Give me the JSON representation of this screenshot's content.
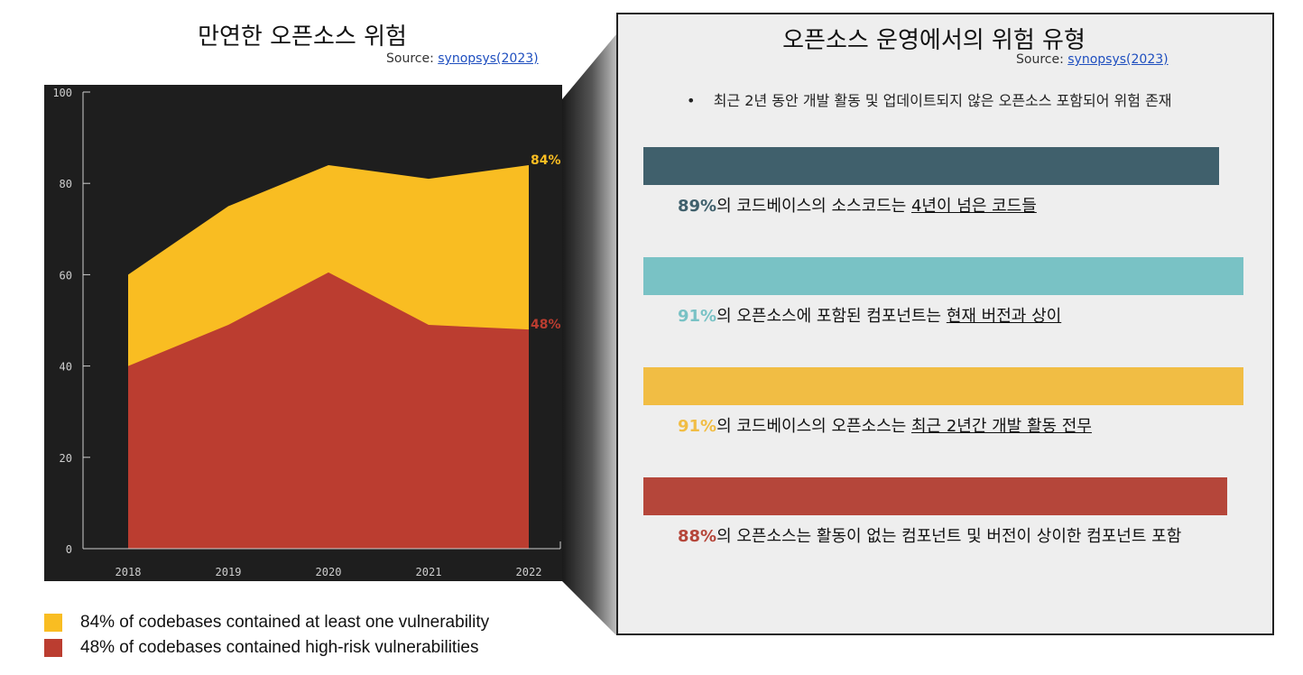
{
  "left": {
    "title": "만연한 오픈소스 위험",
    "source_label": "Source: ",
    "source_link": "synopsys(2023)"
  },
  "chart_data": {
    "type": "area",
    "x": [
      "2018",
      "2019",
      "2020",
      "2021",
      "2022"
    ],
    "series": [
      {
        "name": "84% of codebases contained at least one vulnerability",
        "values": [
          60,
          75,
          84,
          81,
          84
        ],
        "color": "#f9bd22"
      },
      {
        "name": "48% of codebases contained high-risk vulnerabilities",
        "values": [
          40,
          49,
          60.5,
          49,
          48
        ],
        "color": "#bb3d30"
      }
    ],
    "ylim": [
      0,
      100
    ],
    "yticks": [
      0,
      20,
      40,
      60,
      80,
      100
    ],
    "end_labels": [
      "84%",
      "48%"
    ],
    "background": "#1e1e1e",
    "legend_position": "bottom-left"
  },
  "right": {
    "title": "오픈소스 운영에서의 위험 유형",
    "source_label": "Source: ",
    "source_link": "synopsys(2023)",
    "bullet": "최근 2년 동안 개발 활동 및 업데이트되지 않은 오픈소스 포함되어 위험 존재",
    "stats": [
      {
        "pct": "89%",
        "text": "의 코드베이스의 소스코드는 ",
        "emph": "4년이 넘은 코드들",
        "color": "#40606c"
      },
      {
        "pct": "91%",
        "text": "의 오픈소스에 포함된 컴포넌트는 ",
        "emph": "현재 버전과 상이",
        "color": "#79c2c5"
      },
      {
        "pct": "91%",
        "text": "의 코드베이스의 오픈소스는 ",
        "emph": "최근 2년간 개발 활동 전무",
        "color": "#f1bd44"
      },
      {
        "pct": "88%",
        "text": "의 오픈소스는 활동이 없는 컴포넌트 및 버전이 상이한 컴포넌트 포함",
        "emph": "",
        "color": "#b5463a"
      }
    ]
  }
}
